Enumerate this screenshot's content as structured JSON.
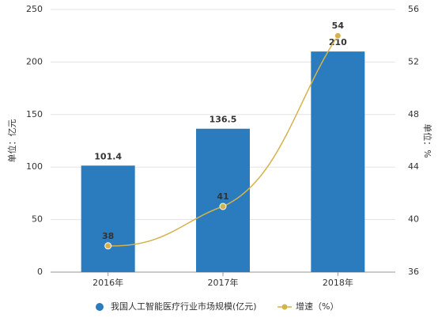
{
  "chart_data": {
    "type": "bar",
    "categories": [
      "2016年",
      "2017年",
      "2018年"
    ],
    "ylabel": "单位：亿元",
    "y2label": "单位：%",
    "ylim": [
      0,
      250
    ],
    "yticks": [
      0,
      50,
      100,
      150,
      200,
      250
    ],
    "y2lim": [
      36,
      56
    ],
    "y2ticks": [
      36,
      40,
      44,
      48,
      52,
      56
    ],
    "series": [
      {
        "name": "我国人工智能医疗行业市场规模(亿元)",
        "type": "bar",
        "color": "#2b7bbf",
        "values": [
          101.4,
          136.5,
          210
        ]
      },
      {
        "name": "增速（%）",
        "type": "line",
        "axis": "y2",
        "color": "#d4b24c",
        "values": [
          38,
          41,
          54
        ]
      }
    ]
  }
}
